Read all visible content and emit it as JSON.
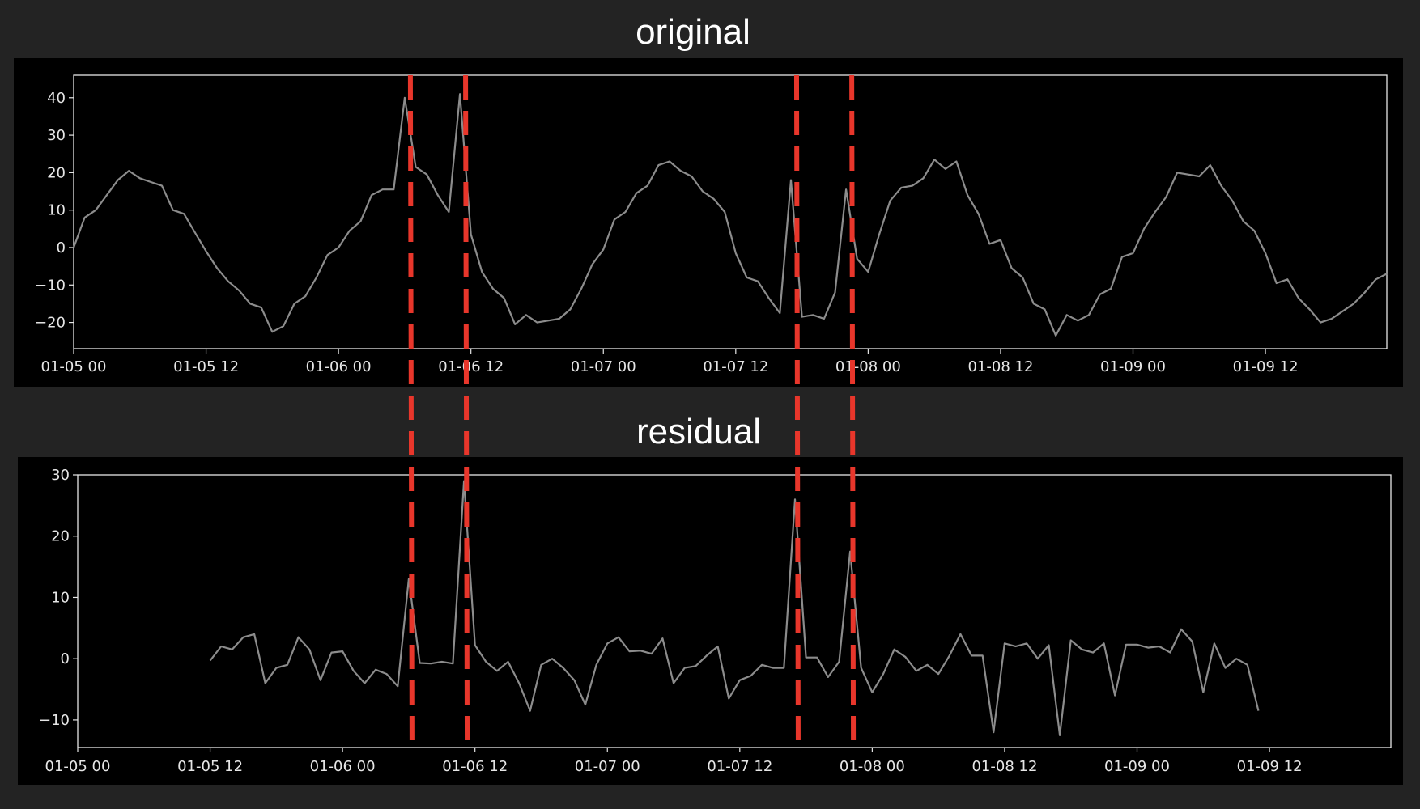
{
  "titles": {
    "top": "original",
    "bottom": "residual"
  },
  "colors": {
    "page_bg": "#232323",
    "panel_bg": "#000000",
    "line": "#8c8c8c",
    "axes": "#e6e6e6",
    "tick_text": "#e6e6e6",
    "title_text": "#ffffff",
    "anomaly_marker": "#e8362b"
  },
  "chart_data": [
    {
      "type": "line",
      "title": "original",
      "x_ticks": [
        "01-05 00",
        "01-05 12",
        "01-06 00",
        "01-06 12",
        "01-07 00",
        "01-07 12",
        "01-08 00",
        "01-08 12",
        "01-09 00",
        "01-09 12"
      ],
      "y_ticks": [
        40,
        30,
        20,
        10,
        0,
        -10,
        -20
      ],
      "xlim": [
        "01-05 00",
        "01-09 23"
      ],
      "ylim": [
        -27,
        46
      ],
      "grid": false,
      "series": [
        {
          "x": [
            "01-05 00",
            "01-05 01",
            "01-05 02",
            "01-05 03",
            "01-05 04",
            "01-05 05",
            "01-05 06",
            "01-05 07",
            "01-05 08",
            "01-05 09",
            "01-05 10",
            "01-05 11",
            "01-05 12",
            "01-05 13",
            "01-05 14",
            "01-05 15",
            "01-05 16",
            "01-05 17",
            "01-05 18",
            "01-05 19",
            "01-05 20",
            "01-05 21",
            "01-05 22",
            "01-05 23",
            "01-06 00",
            "01-06 01",
            "01-06 02",
            "01-06 03",
            "01-06 04",
            "01-06 05",
            "01-06 06",
            "01-06 07",
            "01-06 08",
            "01-06 09",
            "01-06 10",
            "01-06 11",
            "01-06 12",
            "01-06 13",
            "01-06 14",
            "01-06 15",
            "01-06 16",
            "01-06 17",
            "01-06 18",
            "01-06 19",
            "01-06 20",
            "01-06 21",
            "01-06 22",
            "01-06 23",
            "01-07 00",
            "01-07 01",
            "01-07 02",
            "01-07 03",
            "01-07 04",
            "01-07 05",
            "01-07 06",
            "01-07 07",
            "01-07 08",
            "01-07 09",
            "01-07 10",
            "01-07 11",
            "01-07 12",
            "01-07 13",
            "01-07 14",
            "01-07 15",
            "01-07 16",
            "01-07 17",
            "01-07 18",
            "01-07 19",
            "01-07 20",
            "01-07 21",
            "01-07 22",
            "01-07 23",
            "01-08 00",
            "01-08 01",
            "01-08 02",
            "01-08 03",
            "01-08 04",
            "01-08 05",
            "01-08 06",
            "01-08 07",
            "01-08 08",
            "01-08 09",
            "01-08 10",
            "01-08 11",
            "01-08 12",
            "01-08 13",
            "01-08 14",
            "01-08 15",
            "01-08 16",
            "01-08 17",
            "01-08 18",
            "01-08 19",
            "01-08 20",
            "01-08 21",
            "01-08 22",
            "01-08 23",
            "01-09 00",
            "01-09 01",
            "01-09 02",
            "01-09 03",
            "01-09 04",
            "01-09 05",
            "01-09 06",
            "01-09 07",
            "01-09 08",
            "01-09 09",
            "01-09 10",
            "01-09 11",
            "01-09 12",
            "01-09 13",
            "01-09 14",
            "01-09 15",
            "01-09 16",
            "01-09 17",
            "01-09 18",
            "01-09 19",
            "01-09 20",
            "01-09 21",
            "01-09 22",
            "01-09 23"
          ],
          "y": [
            0,
            8,
            10,
            14,
            18,
            20.5,
            18.5,
            17.5,
            16.5,
            10,
            9,
            4,
            -1,
            -5.5,
            -9,
            -11.5,
            -15,
            -16,
            -22.5,
            -21,
            -15,
            -13,
            -8,
            -2,
            0,
            4.5,
            7,
            14,
            15.5,
            15.5,
            40,
            21.5,
            19.5,
            14,
            9.5,
            41,
            3.5,
            -6.5,
            -11,
            -13.5,
            -20.5,
            -18,
            -20,
            -19.5,
            -19,
            -16.5,
            -11,
            -4.5,
            -0.5,
            7.5,
            9.5,
            14.5,
            16.5,
            22,
            23,
            20.5,
            19,
            15,
            13,
            9.5,
            -1.5,
            -8,
            -9,
            -13.5,
            -17.5,
            18,
            -18.5,
            -18,
            -19,
            -12,
            15.5,
            -3,
            -6.5,
            3.5,
            12.5,
            16,
            16.5,
            18.5,
            23.5,
            21,
            23,
            14,
            9,
            1,
            2,
            -5.5,
            -8,
            -15,
            -16.5,
            -23.5,
            -18,
            -19.5,
            -18,
            -12.5,
            -11,
            -2.5,
            -1.5,
            5,
            9.5,
            13.5,
            20,
            19.5,
            19,
            22,
            16.5,
            12.5,
            7,
            4.5,
            -1.5,
            -9.5,
            -8.5,
            -13.5,
            -16.5,
            -20,
            -19,
            -17,
            -15,
            -12,
            -8.5,
            -7
          ]
        }
      ],
      "anomalies_x": [
        "01-06 06",
        "01-06 11",
        "01-07 17",
        "01-07 22"
      ]
    },
    {
      "type": "line",
      "title": "residual",
      "x_ticks": [
        "01-05 00",
        "01-05 12",
        "01-06 00",
        "01-06 12",
        "01-07 00",
        "01-07 12",
        "01-08 00",
        "01-08 12",
        "01-09 00",
        "01-09 12"
      ],
      "y_ticks": [
        30,
        20,
        10,
        0,
        -10
      ],
      "xlim": [
        "01-05 00",
        "01-09 23"
      ],
      "ylim": [
        -14.5,
        30
      ],
      "grid": false,
      "series": [
        {
          "x": [
            "01-05 12",
            "01-05 13",
            "01-05 14",
            "01-05 15",
            "01-05 16",
            "01-05 17",
            "01-05 18",
            "01-05 19",
            "01-05 20",
            "01-05 21",
            "01-05 22",
            "01-05 23",
            "01-06 00",
            "01-06 01",
            "01-06 02",
            "01-06 03",
            "01-06 04",
            "01-06 05",
            "01-06 06",
            "01-06 07",
            "01-06 08",
            "01-06 09",
            "01-06 10",
            "01-06 11",
            "01-06 12",
            "01-06 13",
            "01-06 14",
            "01-06 15",
            "01-06 16",
            "01-06 17",
            "01-06 18",
            "01-06 19",
            "01-06 20",
            "01-06 21",
            "01-06 22",
            "01-06 23",
            "01-07 00",
            "01-07 01",
            "01-07 02",
            "01-07 03",
            "01-07 04",
            "01-07 05",
            "01-07 06",
            "01-07 07",
            "01-07 08",
            "01-07 09",
            "01-07 10",
            "01-07 11",
            "01-07 12",
            "01-07 13",
            "01-07 14",
            "01-07 15",
            "01-07 16",
            "01-07 17",
            "01-07 18",
            "01-07 19",
            "01-07 20",
            "01-07 21",
            "01-07 22",
            "01-07 23",
            "01-08 00",
            "01-08 01",
            "01-08 02",
            "01-08 03",
            "01-08 04",
            "01-08 05",
            "01-08 06",
            "01-08 07",
            "01-08 08",
            "01-08 09",
            "01-08 10",
            "01-08 11",
            "01-08 12",
            "01-08 13",
            "01-08 14",
            "01-08 15",
            "01-08 16",
            "01-08 17",
            "01-08 18",
            "01-08 19",
            "01-08 20",
            "01-08 21",
            "01-08 22",
            "01-08 23",
            "01-09 00",
            "01-09 01",
            "01-09 02",
            "01-09 03",
            "01-09 04",
            "01-09 05",
            "01-09 06",
            "01-09 07",
            "01-09 08",
            "01-09 09",
            "01-09 10",
            "01-09 11"
          ],
          "y": [
            -0.3,
            2,
            1.5,
            3.5,
            4,
            -4,
            -1.5,
            -1,
            3.5,
            1.5,
            -3.5,
            1,
            1.2,
            -2,
            -4,
            -1.8,
            -2.5,
            -4.5,
            13,
            -0.7,
            -0.8,
            -0.5,
            -0.8,
            29,
            2.2,
            -0.5,
            -2,
            -0.5,
            -4,
            -8.5,
            -1,
            0,
            -1.5,
            -3.5,
            -7.5,
            -1,
            2.5,
            3.5,
            1.2,
            1.3,
            0.8,
            3.3,
            -4,
            -1.5,
            -1.2,
            0.5,
            2,
            -6.5,
            -3.5,
            -2.8,
            -1,
            -1.5,
            -1.5,
            26,
            0.2,
            0.2,
            -3,
            -0.5,
            17.5,
            -1.5,
            -5.5,
            -2.5,
            1.5,
            0.3,
            -2,
            -1,
            -2.5,
            0.5,
            4,
            0.5,
            0.5,
            -12,
            2.5,
            2,
            2.5,
            0,
            2.2,
            -12.5,
            3,
            1.5,
            1,
            2.5,
            -6,
            2.3,
            2.3,
            1.8,
            2,
            1,
            4.8,
            2.8,
            -5.5,
            2.5,
            -1.5,
            0,
            -1,
            -8.5
          ]
        }
      ],
      "anomalies_x": [
        "01-06 06",
        "01-06 11",
        "01-07 17",
        "01-07 22"
      ]
    }
  ]
}
